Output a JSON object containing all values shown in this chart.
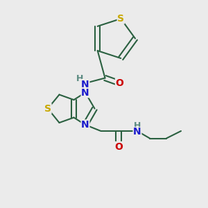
{
  "background_color": "#ebebeb",
  "bond_color": "#2a6040",
  "bond_width": 1.5,
  "S_color": "#c8a800",
  "N_color": "#1a1acc",
  "O_color": "#cc0000",
  "H_color": "#5a8a80",
  "font_size_atom": 10,
  "font_size_H": 9,
  "figsize": [
    3.0,
    3.0
  ],
  "dpi": 100,
  "xlim": [
    0,
    10
  ],
  "ylim": [
    0,
    10
  ]
}
